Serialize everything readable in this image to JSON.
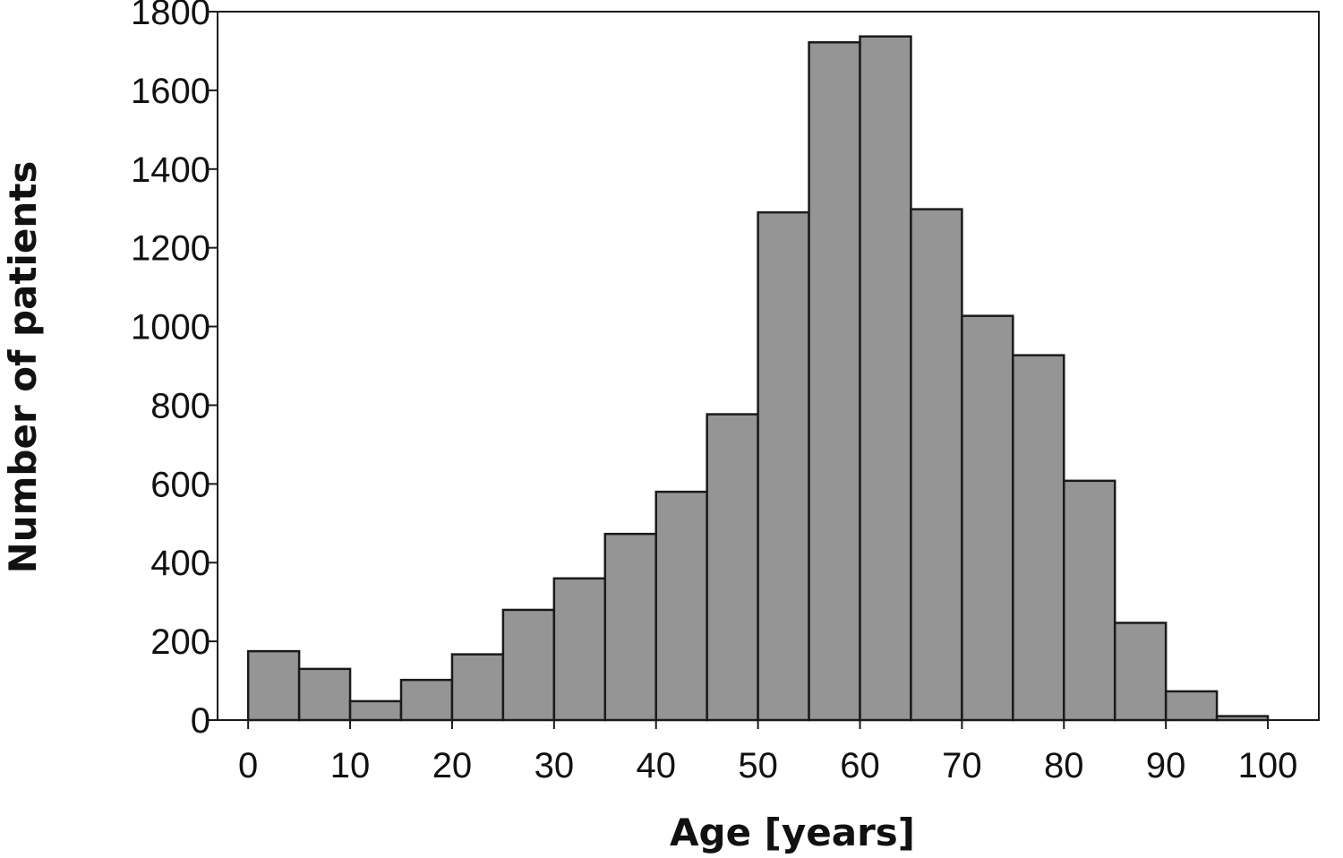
{
  "chart_data": {
    "type": "bar",
    "title": "",
    "xlabel": "Age [years]",
    "ylabel": "Number of patients",
    "xlim": [
      -3,
      105
    ],
    "ylim": [
      0,
      1800
    ],
    "xticks": [
      "0",
      "10",
      "20",
      "30",
      "40",
      "50",
      "60",
      "70",
      "80",
      "90",
      "100"
    ],
    "yticks": [
      "0",
      "200",
      "400",
      "600",
      "800",
      "1000",
      "1200",
      "1400",
      "1600",
      "1800"
    ],
    "bins": [
      {
        "start": 0,
        "end": 5,
        "value": 175
      },
      {
        "start": 5,
        "end": 10,
        "value": 130
      },
      {
        "start": 10,
        "end": 15,
        "value": 48
      },
      {
        "start": 15,
        "end": 20,
        "value": 102
      },
      {
        "start": 20,
        "end": 25,
        "value": 167
      },
      {
        "start": 25,
        "end": 30,
        "value": 280
      },
      {
        "start": 30,
        "end": 35,
        "value": 360
      },
      {
        "start": 35,
        "end": 40,
        "value": 473
      },
      {
        "start": 40,
        "end": 45,
        "value": 580
      },
      {
        "start": 45,
        "end": 50,
        "value": 777
      },
      {
        "start": 50,
        "end": 55,
        "value": 1290
      },
      {
        "start": 55,
        "end": 60,
        "value": 1722
      },
      {
        "start": 60,
        "end": 65,
        "value": 1737
      },
      {
        "start": 65,
        "end": 70,
        "value": 1298
      },
      {
        "start": 70,
        "end": 75,
        "value": 1027
      },
      {
        "start": 75,
        "end": 80,
        "value": 927
      },
      {
        "start": 80,
        "end": 85,
        "value": 608
      },
      {
        "start": 85,
        "end": 90,
        "value": 247
      },
      {
        "start": 90,
        "end": 95,
        "value": 73
      },
      {
        "start": 95,
        "end": 100,
        "value": 10
      }
    ],
    "bar_color": "#959595",
    "bar_edge_color": "#1a1a1a",
    "grid": false,
    "legend": "none"
  }
}
